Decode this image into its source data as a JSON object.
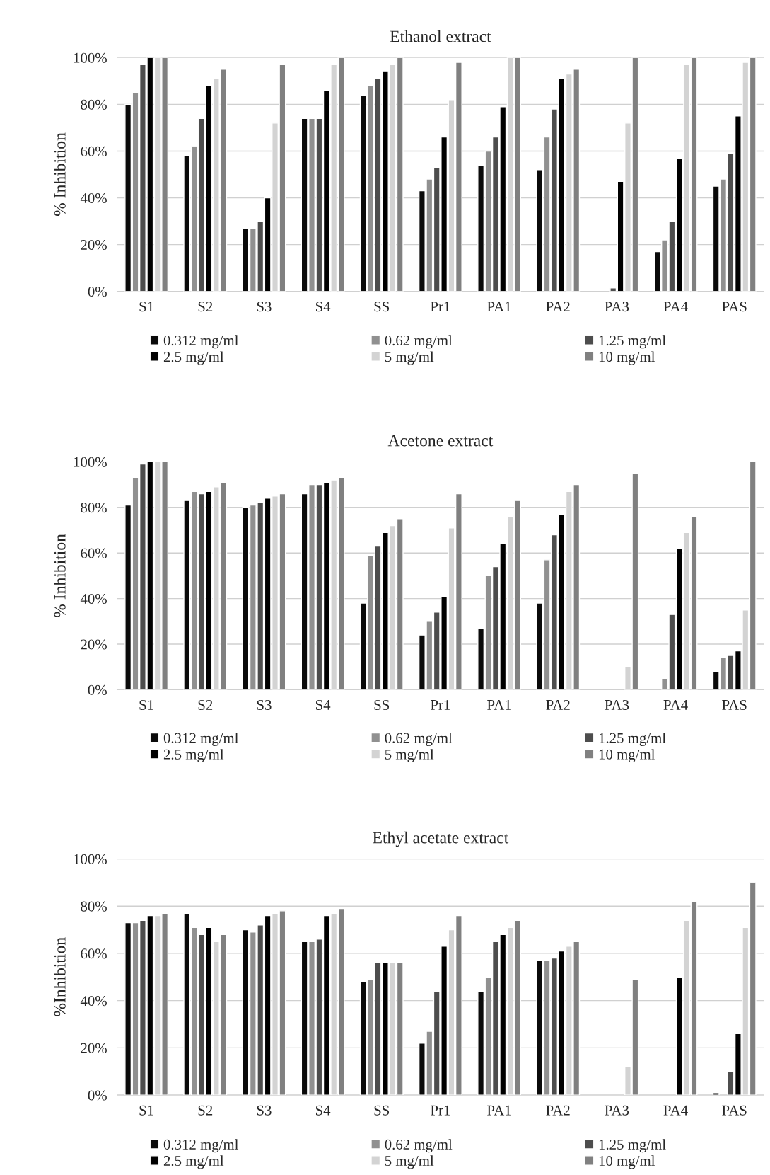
{
  "chart_data": [
    {
      "type": "bar",
      "title": "Ethanol extract",
      "ylabel": "% Inhibition",
      "categories": [
        "S1",
        "S2",
        "S3",
        "S4",
        "SS",
        "Pr1",
        "PA1",
        "PA2",
        "PA3",
        "PA4",
        "PAS"
      ],
      "series": [
        {
          "name": "0.312 mg/ml",
          "color": "#0a0a0a",
          "values": [
            80,
            58,
            27,
            74,
            84,
            43,
            54,
            52,
            null,
            17,
            45
          ]
        },
        {
          "name": "0.62 mg/ml",
          "color": "#909090",
          "values": [
            85,
            62,
            27,
            74,
            88,
            48,
            60,
            66,
            null,
            22,
            48
          ]
        },
        {
          "name": "1.25 mg/ml",
          "color": "#4d4d4d",
          "values": [
            97,
            74,
            30,
            74,
            91,
            53,
            66,
            78,
            1.5,
            30,
            59
          ]
        },
        {
          "name": "2.5 mg/ml",
          "color": "#000000",
          "values": [
            100,
            88,
            40,
            86,
            94,
            66,
            79,
            91,
            47,
            57,
            75
          ]
        },
        {
          "name": "5 mg/ml",
          "color": "#d3d3d3",
          "values": [
            100,
            91,
            72,
            97,
            97,
            82,
            100,
            93,
            72,
            97,
            98
          ]
        },
        {
          "name": "10 mg/ml",
          "color": "#808080",
          "values": [
            100,
            95,
            97,
            100,
            100,
            98,
            100,
            95,
            100,
            100,
            100
          ]
        }
      ],
      "ylim": [
        0,
        100
      ],
      "yticks": [
        {
          "value": 0,
          "label": "0%"
        },
        {
          "value": 20,
          "label": "20%"
        },
        {
          "value": 40,
          "label": "40%"
        },
        {
          "value": 60,
          "label": "60%"
        },
        {
          "value": 80,
          "label": "80%"
        },
        {
          "value": 100,
          "label": "100%"
        }
      ],
      "grid": "y",
      "legend": "bottom"
    },
    {
      "type": "bar",
      "title": "Acetone extract",
      "ylabel": "% Inhibition",
      "categories": [
        "S1",
        "S2",
        "S3",
        "S4",
        "SS",
        "Pr1",
        "PA1",
        "PA2",
        "PA3",
        "PA4",
        "PAS"
      ],
      "series": [
        {
          "name": "0.312 mg/ml",
          "color": "#0a0a0a",
          "values": [
            81,
            83,
            80,
            86,
            38,
            24,
            27,
            38,
            null,
            null,
            8
          ]
        },
        {
          "name": "0.62 mg/ml",
          "color": "#909090",
          "values": [
            93,
            87,
            81,
            90,
            59,
            30,
            50,
            57,
            null,
            5,
            14
          ]
        },
        {
          "name": "1.25 mg/ml",
          "color": "#4d4d4d",
          "values": [
            99,
            86,
            82,
            90,
            63,
            34,
            54,
            68,
            null,
            33,
            15
          ]
        },
        {
          "name": "2.5 mg/ml",
          "color": "#000000",
          "values": [
            100,
            87,
            84,
            91,
            69,
            41,
            64,
            77,
            null,
            62,
            17
          ]
        },
        {
          "name": "5 mg/ml",
          "color": "#d3d3d3",
          "values": [
            100,
            89,
            85,
            92,
            72,
            71,
            76,
            87,
            10,
            69,
            35
          ]
        },
        {
          "name": "10 mg/ml",
          "color": "#808080",
          "values": [
            100,
            91,
            86,
            93,
            75,
            86,
            83,
            90,
            95,
            76,
            100
          ]
        }
      ],
      "ylim": [
        0,
        100
      ],
      "yticks": [
        {
          "value": 0,
          "label": "0%"
        },
        {
          "value": 20,
          "label": "20%"
        },
        {
          "value": 40,
          "label": "40%"
        },
        {
          "value": 60,
          "label": "60%"
        },
        {
          "value": 80,
          "label": "80%"
        },
        {
          "value": 100,
          "label": "100%"
        }
      ],
      "grid": "y",
      "legend": "bottom"
    },
    {
      "type": "bar",
      "title": "Ethyl acetate extract",
      "ylabel": "%Inhibition",
      "categories": [
        "S1",
        "S2",
        "S3",
        "S4",
        "SS",
        "Pr1",
        "PA1",
        "PA2",
        "PA3",
        "PA4",
        "PAS"
      ],
      "series": [
        {
          "name": "0.312 mg/ml",
          "color": "#0a0a0a",
          "values": [
            73,
            77,
            70,
            65,
            48,
            22,
            44,
            57,
            null,
            null,
            1
          ]
        },
        {
          "name": "0.62 mg/ml",
          "color": "#909090",
          "values": [
            73,
            71,
            69,
            65,
            49,
            27,
            50,
            57,
            null,
            null,
            null
          ]
        },
        {
          "name": "1.25 mg/ml",
          "color": "#4d4d4d",
          "values": [
            74,
            68,
            72,
            66,
            56,
            44,
            65,
            58,
            null,
            null,
            10
          ]
        },
        {
          "name": "2.5 mg/ml",
          "color": "#000000",
          "values": [
            76,
            71,
            76,
            76,
            56,
            63,
            68,
            61,
            null,
            50,
            26
          ]
        },
        {
          "name": "5 mg/ml",
          "color": "#d3d3d3",
          "values": [
            76,
            65,
            77,
            77,
            56,
            70,
            71,
            63,
            12,
            74,
            71
          ]
        },
        {
          "name": "10 mg/ml",
          "color": "#808080",
          "values": [
            77,
            68,
            78,
            79,
            56,
            76,
            74,
            65,
            49,
            82,
            90
          ]
        }
      ],
      "ylim": [
        0,
        100
      ],
      "yticks": [
        {
          "value": 0,
          "label": "0%"
        },
        {
          "value": 20,
          "label": "20%"
        },
        {
          "value": 40,
          "label": "40%"
        },
        {
          "value": 60,
          "label": "60%"
        },
        {
          "value": 80,
          "label": "80%"
        },
        {
          "value": 100,
          "label": "100%"
        }
      ],
      "grid": "y",
      "legend": "bottom"
    }
  ]
}
